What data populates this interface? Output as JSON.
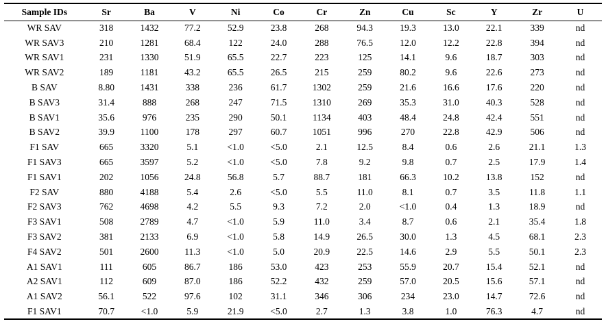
{
  "table": {
    "name": "trace-element-concentrations",
    "columns": [
      "Sample IDs",
      "Sr",
      "Ba",
      "V",
      "Ni",
      "Co",
      "Cr",
      "Zn",
      "Cu",
      "Sc",
      "Y",
      "Zr",
      "U"
    ],
    "not_detected_label": "nd",
    "rows": [
      [
        "WR SAV",
        "318",
        "1432",
        "77.2",
        "52.9",
        "23.8",
        "268",
        "94.3",
        "19.3",
        "13.0",
        "22.1",
        "339",
        "nd"
      ],
      [
        "WR SAV3",
        "210",
        "1281",
        "68.4",
        "122",
        "24.0",
        "288",
        "76.5",
        "12.0",
        "12.2",
        "22.8",
        "394",
        "nd"
      ],
      [
        "WR SAV1",
        "231",
        "1330",
        "51.9",
        "65.5",
        "22.7",
        "223",
        "125",
        "14.1",
        "9.6",
        "18.7",
        "303",
        "nd"
      ],
      [
        "WR SAV2",
        "189",
        "1181",
        "43.2",
        "65.5",
        "26.5",
        "215",
        "259",
        "80.2",
        "9.6",
        "22.6",
        "273",
        "nd"
      ],
      [
        "B SAV",
        "8.80",
        "1431",
        "338",
        "236",
        "61.7",
        "1302",
        "259",
        "21.6",
        "16.6",
        "17.6",
        "220",
        "nd"
      ],
      [
        "B SAV3",
        "31.4",
        "888",
        "268",
        "247",
        "71.5",
        "1310",
        "269",
        "35.3",
        "31.0",
        "40.3",
        "528",
        "nd"
      ],
      [
        "B SAV1",
        "35.6",
        "976",
        "235",
        "290",
        "50.1",
        "1134",
        "403",
        "48.4",
        "24.8",
        "42.4",
        "551",
        "nd"
      ],
      [
        "B SAV2",
        "39.9",
        "1100",
        "178",
        "297",
        "60.7",
        "1051",
        "996",
        "270",
        "22.8",
        "42.9",
        "506",
        "nd"
      ],
      [
        "F1 SAV",
        "665",
        "3320",
        "5.1",
        "<1.0",
        "<5.0",
        "2.1",
        "12.5",
        "8.4",
        "0.6",
        "2.6",
        "21.1",
        "1.3"
      ],
      [
        "F1 SAV3",
        "665",
        "3597",
        "5.2",
        "<1.0",
        "<5.0",
        "7.8",
        "9.2",
        "9.8",
        "0.7",
        "2.5",
        "17.9",
        "1.4"
      ],
      [
        "F1 SAV1",
        "202",
        "1056",
        "24.8",
        "56.8",
        "5.7",
        "88.7",
        "181",
        "66.3",
        "10.2",
        "13.8",
        "152",
        "nd"
      ],
      [
        "F2 SAV",
        "880",
        "4188",
        "5.4",
        "2.6",
        "<5.0",
        "5.5",
        "11.0",
        "8.1",
        "0.7",
        "3.5",
        "11.8",
        "1.1"
      ],
      [
        "F2 SAV3",
        "762",
        "4698",
        "4.2",
        "5.5",
        "9.3",
        "7.2",
        "2.0",
        "<1.0",
        "0.4",
        "1.3",
        "18.9",
        "nd"
      ],
      [
        "F3 SAV1",
        "508",
        "2789",
        "4.7",
        "<1.0",
        "5.9",
        "11.0",
        "3.4",
        "8.7",
        "0.6",
        "2.1",
        "35.4",
        "1.8"
      ],
      [
        "F3 SAV2",
        "381",
        "2133",
        "6.9",
        "<1.0",
        "5.8",
        "14.9",
        "26.5",
        "30.0",
        "1.3",
        "4.5",
        "68.1",
        "2.3"
      ],
      [
        "F4 SAV2",
        "501",
        "2600",
        "11.3",
        "<1.0",
        "5.0",
        "20.9",
        "22.5",
        "14.6",
        "2.9",
        "5.5",
        "50.1",
        "2.3"
      ],
      [
        "A1 SAV1",
        "111",
        "605",
        "86.7",
        "186",
        "53.0",
        "423",
        "253",
        "55.9",
        "20.7",
        "15.4",
        "52.1",
        "nd"
      ],
      [
        "A2 SAV1",
        "112",
        "609",
        "87.0",
        "186",
        "52.2",
        "432",
        "259",
        "57.0",
        "20.5",
        "15.6",
        "57.1",
        "nd"
      ],
      [
        "A1 SAV2",
        "56.1",
        "522",
        "97.6",
        "102",
        "31.1",
        "346",
        "306",
        "234",
        "23.0",
        "14.7",
        "72.6",
        "nd"
      ],
      [
        "F1 SAV1",
        "70.7",
        "<1.0",
        "5.9",
        "21.9",
        "<5.0",
        "2.7",
        "1.3",
        "3.8",
        "1.0",
        "76.3",
        "4.7",
        "nd"
      ]
    ]
  }
}
